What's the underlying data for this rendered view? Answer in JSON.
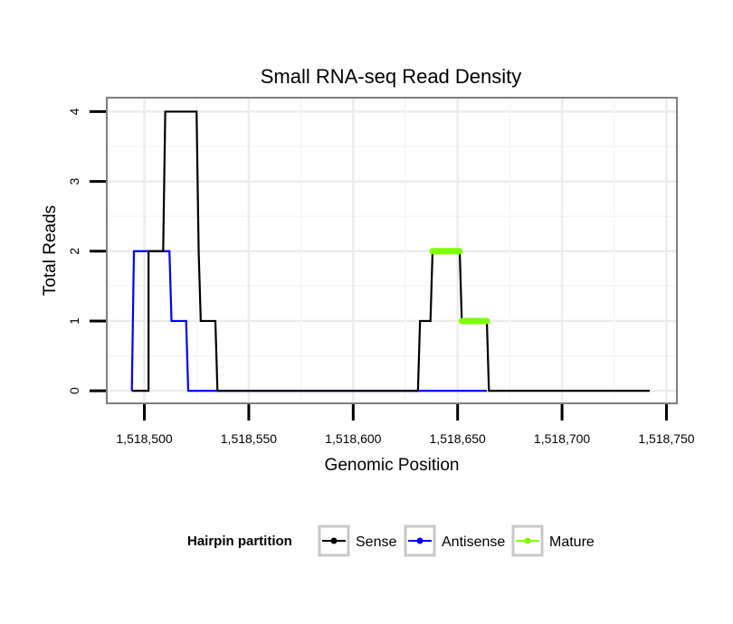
{
  "chart_data": {
    "type": "line",
    "title": "Small RNA-seq Read Density",
    "xlabel": "Genomic Position",
    "ylabel": "Total Reads",
    "xlim": [
      1518482,
      1518755
    ],
    "ylim": [
      -0.18,
      4.2
    ],
    "x_ticks": [
      1518500,
      1518550,
      1518600,
      1518650,
      1518700,
      1518750
    ],
    "x_tick_labels": [
      "1,518,500",
      "1,518,550",
      "1,518,600",
      "1,518,650",
      "1,518,700",
      "1,518,750"
    ],
    "y_ticks": [
      0,
      1,
      2,
      3,
      4
    ],
    "y_tick_labels": [
      "0",
      "1",
      "2",
      "3",
      "4"
    ],
    "grid": true,
    "legend": {
      "title": "Hairpin partition",
      "position": "bottom",
      "entries": [
        "Sense",
        "Antisense",
        "Mature"
      ]
    },
    "series": [
      {
        "name": "Sense",
        "color": "#000000",
        "step": true,
        "points": [
          [
            1518494,
            0
          ],
          [
            1518502,
            0
          ],
          [
            1518502,
            2
          ],
          [
            1518509,
            2
          ],
          [
            1518510,
            4
          ],
          [
            1518525,
            4
          ],
          [
            1518526,
            2
          ],
          [
            1518527,
            1
          ],
          [
            1518534,
            1
          ],
          [
            1518535,
            0
          ],
          [
            1518631,
            0
          ],
          [
            1518632,
            1
          ],
          [
            1518637,
            1
          ],
          [
            1518638,
            2
          ],
          [
            1518651,
            2
          ],
          [
            1518652,
            1
          ],
          [
            1518664,
            1
          ],
          [
            1518665,
            0
          ],
          [
            1518742,
            0
          ]
        ]
      },
      {
        "name": "Antisense",
        "color": "#0000ff",
        "step": true,
        "points": [
          [
            1518494,
            0
          ],
          [
            1518495,
            2
          ],
          [
            1518512,
            2
          ],
          [
            1518513,
            1
          ],
          [
            1518520,
            1
          ],
          [
            1518521,
            0
          ],
          [
            1518664,
            0
          ]
        ]
      },
      {
        "name": "Mature",
        "color": "#7fff00",
        "segments": [
          [
            [
              1518638,
              2
            ],
            [
              1518651,
              2
            ]
          ],
          [
            [
              1518652,
              1
            ],
            [
              1518664,
              1
            ]
          ]
        ]
      }
    ]
  }
}
